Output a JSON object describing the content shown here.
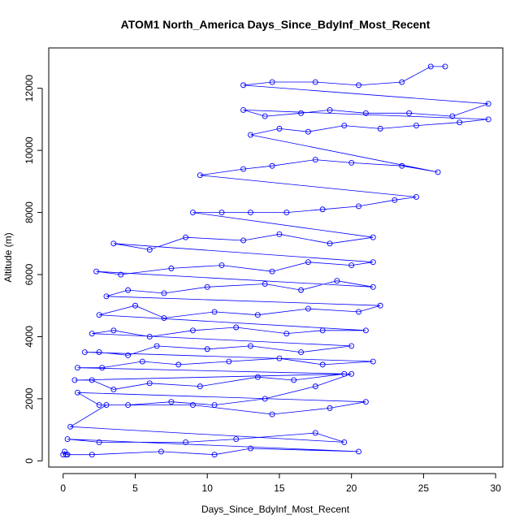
{
  "chart_data": {
    "type": "scatter",
    "title": "ATOM1 North_America Days_Since_BdyInf_Most_Recent",
    "xlabel": "Days_Since_BdyInf_Most_Recent",
    "ylabel": "Altitude (m)",
    "xlim": [
      -1,
      30.5
    ],
    "ylim": [
      -200,
      13300
    ],
    "xticks": [
      0,
      5,
      10,
      15,
      20,
      25,
      30
    ],
    "yticks": [
      0,
      2000,
      4000,
      6000,
      8000,
      10000,
      12000
    ],
    "grid": false,
    "legend": "none",
    "style": "points connected by lines",
    "series_color": "#0000ff",
    "series": [
      {
        "name": "",
        "x": [
          0.0,
          0.1,
          0.3,
          0.2,
          2.0,
          6.8,
          10.5,
          13.0,
          20.5,
          0.3,
          2.5,
          8.5,
          12.0,
          17.5,
          19.5,
          0.5,
          3.0,
          9.0,
          14.5,
          18.5,
          21.0,
          1.0,
          2.5,
          4.5,
          7.5,
          10.5,
          14.0,
          17.5,
          20.0,
          0.8,
          2.0,
          3.5,
          6.0,
          9.5,
          13.5,
          16.0,
          19.5,
          1.0,
          2.7,
          5.5,
          8.0,
          11.5,
          15.0,
          18.0,
          21.5,
          1.5,
          2.5,
          4.5,
          6.5,
          10.0,
          13.0,
          16.5,
          20.0,
          2.0,
          3.5,
          6.0,
          9.0,
          12.0,
          15.5,
          18.0,
          21.0,
          2.5,
          5.0,
          7.0,
          10.5,
          13.5,
          17.0,
          20.5,
          22.0,
          3.0,
          4.5,
          7.0,
          10.0,
          14.0,
          16.5,
          19.0,
          21.5,
          2.3,
          4.0,
          7.5,
          11.0,
          14.5,
          17.0,
          20.0,
          21.5,
          3.5,
          6.0,
          8.5,
          12.5,
          15.0,
          18.5,
          21.5,
          9.0,
          11.0,
          13.0,
          15.5,
          18.0,
          20.5,
          23.0,
          24.5,
          9.5,
          12.5,
          14.5,
          17.5,
          20.0,
          23.5,
          26.0,
          13.0,
          15.0,
          17.0,
          19.5,
          22.0,
          24.5,
          27.5,
          29.5,
          12.5,
          14.0,
          16.5,
          18.5,
          21.0,
          24.0,
          27.0,
          29.5,
          12.5,
          14.5,
          17.5,
          20.5,
          23.5,
          25.5,
          26.5
        ],
        "y": [
          200,
          300,
          200,
          200,
          200,
          300,
          200,
          400,
          300,
          700,
          600,
          600,
          700,
          900,
          600,
          1100,
          1800,
          1800,
          1500,
          1700,
          1900,
          2200,
          1800,
          1800,
          1900,
          1800,
          2000,
          2400,
          2800,
          2600,
          2600,
          2300,
          2500,
          2400,
          2700,
          2600,
          2800,
          3000,
          3000,
          3200,
          3100,
          3200,
          3300,
          3100,
          3200,
          3500,
          3500,
          3400,
          3700,
          3600,
          3700,
          3500,
          3700,
          4100,
          4200,
          4000,
          4200,
          4300,
          4100,
          4200,
          4200,
          4700,
          5000,
          4600,
          4800,
          4700,
          4900,
          4800,
          5000,
          5300,
          5500,
          5400,
          5600,
          5700,
          5500,
          5800,
          5600,
          6100,
          6000,
          6200,
          6300,
          6100,
          6400,
          6300,
          6400,
          7000,
          6800,
          7200,
          7100,
          7300,
          7000,
          7200,
          8000,
          8000,
          8000,
          8000,
          8100,
          8200,
          8400,
          8500,
          9200,
          9400,
          9500,
          9700,
          9600,
          9500,
          9300,
          10500,
          10700,
          10600,
          10800,
          10700,
          10800,
          10900,
          11000,
          11300,
          11100,
          11200,
          11300,
          11200,
          11200,
          11100,
          11500,
          12100,
          12200,
          12200,
          12100,
          12200,
          12700,
          12700
        ]
      }
    ]
  }
}
